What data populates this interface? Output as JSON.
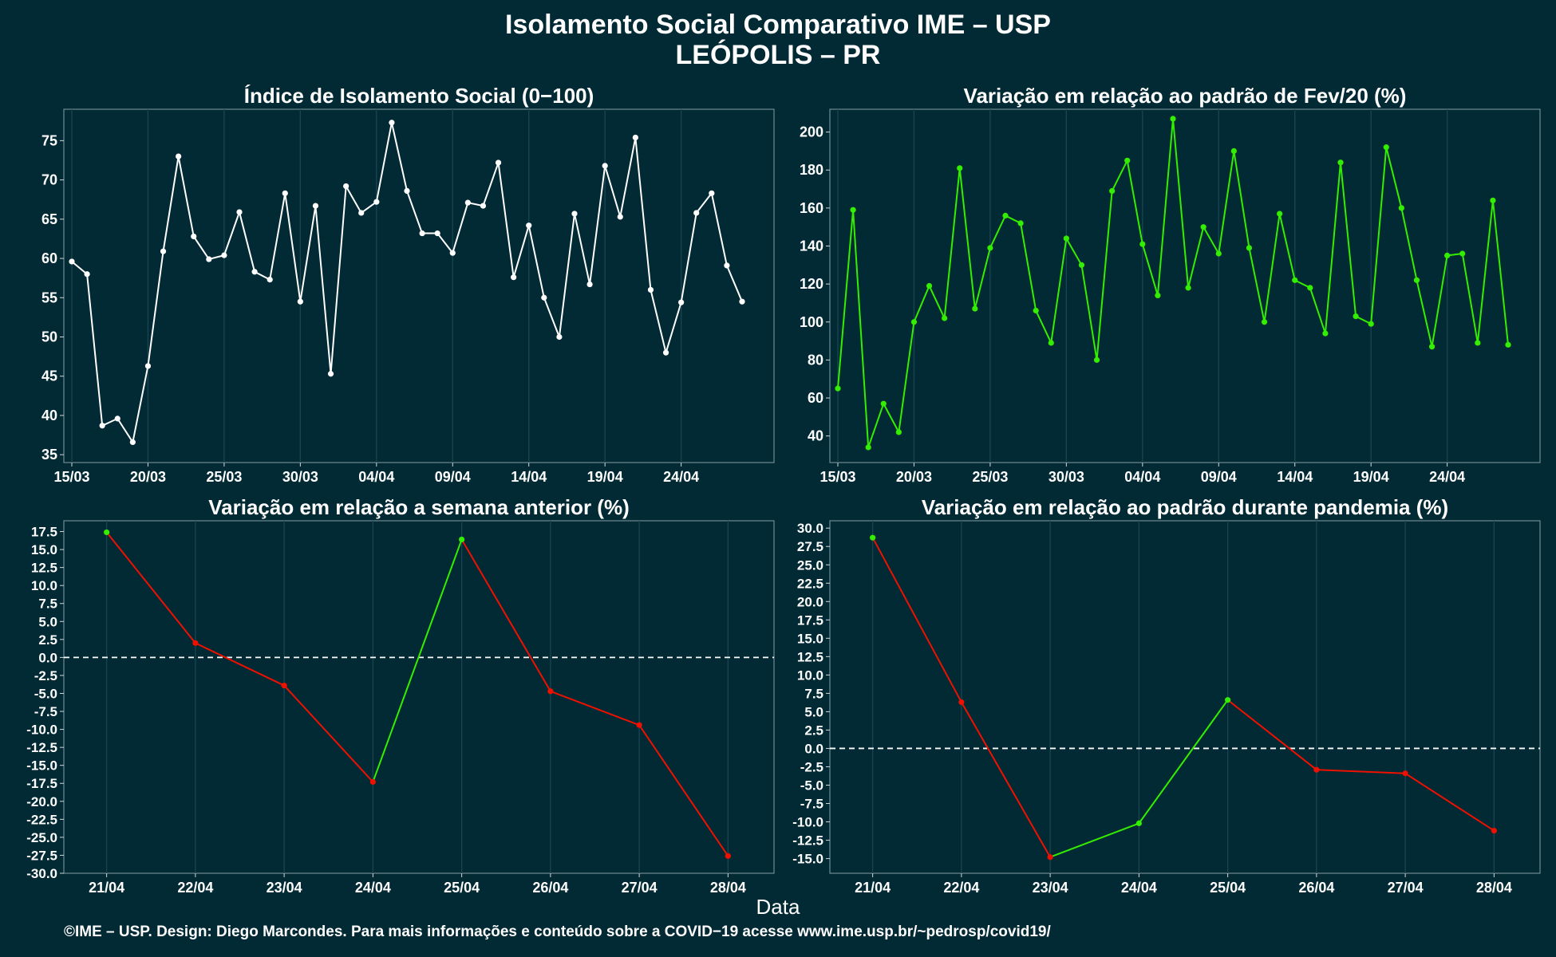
{
  "title": "Isolamento Social Comparativo IME – USP",
  "subtitle": "LEÓPOLIS – PR",
  "xlabel": "Data",
  "footer": "©IME – USP. Design: Diego Marcondes. Para mais informações e conteúdo sobre a COVID−19 acesse www.ime.usp.br/~pedrosp/covid19/",
  "colors": {
    "background": "#022a35",
    "white_line": "#ffffff",
    "green": "#33ee00",
    "red": "#ee1100",
    "grid": "#1a4550"
  },
  "chart_data": [
    {
      "type": "line",
      "title": "Índice de Isolamento Social (0−100)",
      "x_dates": [
        "15/03",
        "16/03",
        "17/03",
        "18/03",
        "19/03",
        "20/03",
        "21/03",
        "22/03",
        "23/03",
        "24/03",
        "25/03",
        "26/03",
        "27/03",
        "28/03",
        "29/03",
        "30/03",
        "31/03",
        "01/04",
        "02/04",
        "03/04",
        "04/04",
        "05/04",
        "06/04",
        "07/04",
        "08/04",
        "09/04",
        "10/04",
        "11/04",
        "12/04",
        "13/04",
        "14/04",
        "15/04",
        "16/04",
        "17/04",
        "18/04",
        "19/04",
        "20/04",
        "21/04",
        "22/04",
        "23/04",
        "24/04",
        "25/04",
        "26/04",
        "27/04",
        "28/04"
      ],
      "xticks": [
        "15/03",
        "20/03",
        "25/03",
        "30/03",
        "04/04",
        "09/04",
        "14/04",
        "19/04",
        "24/04"
      ],
      "ylim": [
        34,
        79
      ],
      "yticks": [
        35,
        40,
        45,
        50,
        55,
        60,
        65,
        70,
        75
      ],
      "line_color": "white",
      "series": [
        {
          "values": [
            59.6,
            58.0,
            38.7,
            39.6,
            36.6,
            46.3,
            60.9,
            73.0,
            62.8,
            59.9,
            60.4,
            65.9,
            58.3,
            57.3,
            68.3,
            54.5,
            66.7,
            45.3,
            69.2,
            65.8,
            67.2,
            77.3,
            68.6,
            63.2,
            63.2,
            60.7,
            67.1,
            66.7,
            72.2,
            57.6,
            64.2,
            55.0,
            50.0,
            65.7,
            56.7,
            71.8,
            65.3,
            75.4,
            56.0,
            48.0,
            54.4,
            65.8,
            68.3,
            59.1,
            54.5
          ]
        }
      ]
    },
    {
      "type": "line",
      "title": "Variação em relação ao padrão de Fev/20 (%)",
      "x_dates": [
        "15/03",
        "16/03",
        "17/03",
        "18/03",
        "19/03",
        "20/03",
        "21/03",
        "22/03",
        "23/03",
        "24/03",
        "25/03",
        "26/03",
        "27/03",
        "28/03",
        "29/03",
        "30/03",
        "31/03",
        "01/04",
        "02/04",
        "03/04",
        "04/04",
        "05/04",
        "06/04",
        "07/04",
        "08/04",
        "09/04",
        "10/04",
        "11/04",
        "12/04",
        "13/04",
        "14/04",
        "15/04",
        "16/04",
        "17/04",
        "18/04",
        "19/04",
        "20/04",
        "21/04",
        "22/04",
        "23/04",
        "24/04",
        "25/04",
        "26/04",
        "27/04",
        "28/04"
      ],
      "xticks": [
        "15/03",
        "20/03",
        "25/03",
        "30/03",
        "04/04",
        "09/04",
        "14/04",
        "19/04",
        "24/04"
      ],
      "ylim": [
        26,
        212
      ],
      "yticks": [
        40,
        60,
        80,
        100,
        120,
        140,
        160,
        180,
        200
      ],
      "line_color": "green",
      "series": [
        {
          "values": [
            65,
            159,
            34,
            57,
            42,
            100,
            119,
            102,
            181,
            107,
            139,
            156,
            152,
            106,
            89,
            144,
            130,
            80,
            169,
            185,
            141,
            114,
            207,
            118,
            150,
            136,
            190,
            139,
            100,
            157,
            122,
            118,
            94,
            184,
            103,
            99,
            192,
            160,
            122,
            87,
            135,
            136,
            89,
            164,
            88
          ]
        }
      ]
    },
    {
      "type": "line",
      "title": "Variação em relação a semana anterior (%)",
      "categories": [
        "21/04",
        "22/04",
        "23/04",
        "24/04",
        "25/04",
        "26/04",
        "27/04",
        "28/04"
      ],
      "ylim": [
        -30,
        19
      ],
      "yticks": [
        -30,
        -27.5,
        -25,
        -22.5,
        -20,
        -17.5,
        -15,
        -12.5,
        -10,
        -7.5,
        -5,
        -2.5,
        0,
        2.5,
        5,
        7.5,
        10,
        12.5,
        15,
        17.5
      ],
      "reference_line": 0,
      "segment_colors": "green when rising, red when falling",
      "series": [
        {
          "values": [
            17.4,
            2.0,
            -3.9,
            -17.3,
            16.4,
            -4.7,
            -9.4,
            -27.6
          ]
        }
      ]
    },
    {
      "type": "line",
      "title": "Variação em relação ao padrão durante pandemia (%)",
      "categories": [
        "21/04",
        "22/04",
        "23/04",
        "24/04",
        "25/04",
        "26/04",
        "27/04",
        "28/04"
      ],
      "ylim": [
        -17,
        31
      ],
      "yticks": [
        -15,
        -12.5,
        -10,
        -7.5,
        -5,
        -2.5,
        0,
        2.5,
        5,
        7.5,
        10,
        12.5,
        15,
        17.5,
        20,
        22.5,
        25,
        27.5,
        30
      ],
      "reference_line": 0,
      "segment_colors": "green when rising, red when falling",
      "series": [
        {
          "values": [
            28.7,
            6.3,
            -14.8,
            -10.2,
            6.6,
            -2.9,
            -3.4,
            -11.2
          ]
        }
      ]
    }
  ]
}
